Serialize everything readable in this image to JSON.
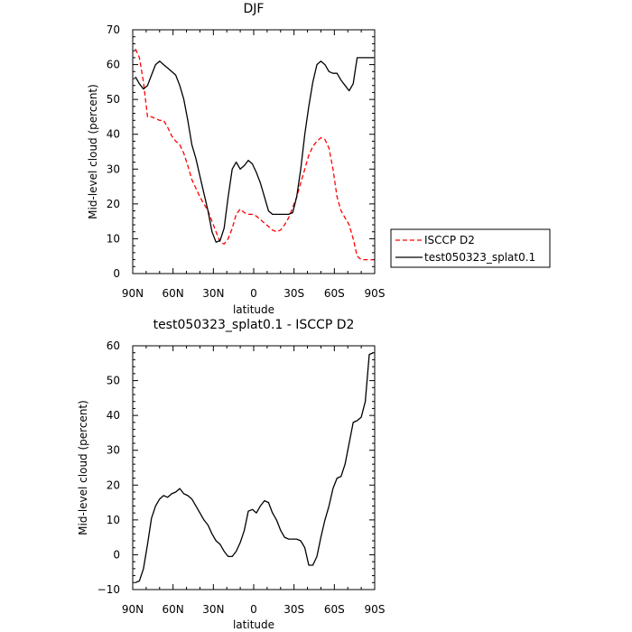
{
  "chart_data": [
    {
      "type": "line",
      "title": "DJF",
      "xlabel": "latitude",
      "ylabel": "Mid-level cloud (percent)",
      "x_ticks": [
        {
          "value": 90,
          "label": "90N"
        },
        {
          "value": 60,
          "label": "60N"
        },
        {
          "value": 30,
          "label": "30N"
        },
        {
          "value": 0,
          "label": "0"
        },
        {
          "value": -30,
          "label": "30S"
        },
        {
          "value": -60,
          "label": "60S"
        },
        {
          "value": -90,
          "label": "90S"
        }
      ],
      "xlim": [
        90,
        -90
      ],
      "ylim": [
        0,
        70
      ],
      "y_ticks": [
        0,
        10,
        20,
        30,
        40,
        50,
        60,
        70
      ],
      "grid": false,
      "legend_position": "right",
      "series": [
        {
          "name": "ISCCP D2",
          "color": "#ff0000",
          "dash": "dashed",
          "x": [
            88,
            85,
            82,
            79,
            76,
            73,
            70,
            67,
            64,
            61,
            58,
            55,
            52,
            49,
            46,
            43,
            40,
            37,
            34,
            31,
            28,
            25,
            22,
            19,
            16,
            13,
            10,
            7,
            4,
            1,
            -2,
            -5,
            -8,
            -11,
            -14,
            -17,
            -20,
            -23,
            -26,
            -29,
            -32,
            -35,
            -38,
            -41,
            -44,
            -47,
            -50,
            -53,
            -56,
            -59,
            -62,
            -65,
            -68,
            -71,
            -74,
            -77,
            -80,
            -83,
            -86,
            -89
          ],
          "values": [
            64.5,
            62,
            55,
            45,
            45,
            44.5,
            44,
            44,
            42,
            39.5,
            38,
            37,
            34.5,
            31,
            27,
            24.5,
            22,
            20,
            18,
            15,
            12,
            9,
            8.5,
            10,
            13,
            17,
            18.5,
            17.5,
            17,
            17,
            16.5,
            15.5,
            14.5,
            13.5,
            12.5,
            12,
            12.5,
            14,
            16,
            19,
            22,
            26,
            30,
            34,
            36.5,
            38,
            39,
            38.5,
            36,
            30,
            22,
            18,
            16,
            14,
            10,
            5,
            4,
            4,
            4,
            4
          ]
        },
        {
          "name": "test050323_splat0.1",
          "color": "#000000",
          "dash": "solid",
          "x": [
            88,
            85,
            82,
            79,
            76,
            73,
            70,
            67,
            64,
            61,
            58,
            55,
            52,
            49,
            46,
            43,
            40,
            37,
            34,
            31,
            28,
            25,
            22,
            19,
            16,
            13,
            10,
            7,
            4,
            1,
            -2,
            -5,
            -8,
            -11,
            -14,
            -17,
            -20,
            -23,
            -26,
            -29,
            -32,
            -35,
            -38,
            -41,
            -44,
            -47,
            -50,
            -53,
            -56,
            -59,
            -62,
            -65,
            -68,
            -71,
            -74,
            -77,
            -80,
            -83,
            -86,
            -89
          ],
          "values": [
            56.5,
            54.5,
            53,
            54,
            57,
            60,
            61,
            60,
            59,
            58,
            57,
            54,
            50,
            44,
            37,
            33,
            28,
            23,
            18,
            12,
            9,
            9.5,
            13,
            22,
            30,
            32,
            30,
            31,
            32.5,
            31.5,
            29,
            26,
            22,
            18,
            17,
            17,
            17,
            17,
            17,
            17.5,
            22,
            30,
            40,
            48,
            55,
            60,
            61,
            60,
            58,
            57.5,
            57.5,
            55.5,
            54,
            52.5,
            54.5,
            62,
            62,
            62,
            62,
            62
          ]
        }
      ]
    },
    {
      "type": "line",
      "title": "test050323_splat0.1 - ISCCP D2",
      "xlabel": "latitude",
      "ylabel": "Mid-level cloud (percent)",
      "x_ticks": [
        {
          "value": 90,
          "label": "90N"
        },
        {
          "value": 60,
          "label": "60N"
        },
        {
          "value": 30,
          "label": "30N"
        },
        {
          "value": 0,
          "label": "0"
        },
        {
          "value": -30,
          "label": "30S"
        },
        {
          "value": -60,
          "label": "60S"
        },
        {
          "value": -90,
          "label": "90S"
        }
      ],
      "xlim": [
        90,
        -90
      ],
      "ylim": [
        -10,
        60
      ],
      "y_ticks": [
        -10,
        0,
        10,
        20,
        30,
        40,
        50,
        60
      ],
      "grid": false,
      "series": [
        {
          "name": "",
          "color": "#000000",
          "dash": "solid",
          "x": [
            88,
            85,
            82,
            79,
            76,
            73,
            70,
            67,
            64,
            61,
            58,
            55,
            52,
            49,
            46,
            43,
            40,
            37,
            34,
            31,
            28,
            25,
            22,
            19,
            16,
            13,
            10,
            7,
            4,
            1,
            -2,
            -5,
            -8,
            -11,
            -14,
            -17,
            -20,
            -23,
            -26,
            -29,
            -32,
            -35,
            -38,
            -41,
            -44,
            -47,
            -50,
            -53,
            -56,
            -59,
            -62,
            -65,
            -68,
            -71,
            -74,
            -77,
            -80,
            -83,
            -86,
            -89
          ],
          "values": [
            -8,
            -7.5,
            -4,
            3,
            10.5,
            14,
            16,
            17,
            16.5,
            17.5,
            18,
            19,
            17.5,
            17,
            16,
            14,
            12,
            10,
            8.5,
            6,
            4,
            3,
            1,
            -0.5,
            -0.5,
            1,
            3.5,
            7,
            12.5,
            13,
            12,
            14,
            15.5,
            15,
            12,
            10,
            7,
            5,
            4.5,
            4.5,
            4.5,
            4,
            2,
            -3,
            -3,
            -0.5,
            5,
            10,
            14,
            19,
            22,
            22.5,
            26,
            32,
            38,
            38.5,
            39.5,
            44,
            57.5,
            58
          ]
        }
      ]
    }
  ]
}
